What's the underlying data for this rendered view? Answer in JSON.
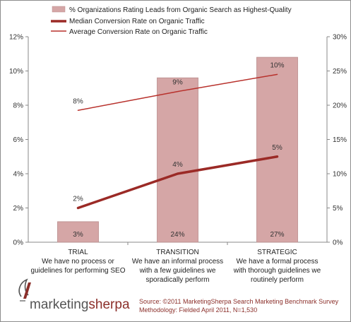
{
  "chart_data": {
    "type": "bar+line",
    "categories": [
      [
        "TRIAL",
        "We have no process or",
        "guidelines for performing SEO"
      ],
      [
        "TRANSITION",
        "We have an informal process",
        "with a few guidelines we",
        "sporadically perform"
      ],
      [
        "STRATEGIC",
        "We have a formal process",
        "with thorough guidelines we",
        "routinely perform"
      ]
    ],
    "series": [
      {
        "name": "% Organizations Rating Leads from Organic Search as Highest-Quality",
        "kind": "bar",
        "axis": "left",
        "values": [
          1.2,
          9.6,
          10.8
        ],
        "labels": [
          "3%",
          "24%",
          "27%"
        ],
        "color": "#d5a6a6",
        "border": "#b98d8d"
      },
      {
        "name": "Median Conversion Rate on Organic Traffic",
        "kind": "line",
        "axis": "left",
        "values": [
          2,
          4,
          5
        ],
        "labels": [
          "2%",
          "4%",
          "5%"
        ],
        "color": "#9b2a26",
        "thick": true
      },
      {
        "name": "Average Conversion Rate on Organic Traffic",
        "kind": "line",
        "axis": "left",
        "values": [
          7.7,
          8.8,
          9.8
        ],
        "labels": [
          "8%",
          "9%",
          "10%"
        ],
        "color": "#b8312c",
        "thick": false
      }
    ],
    "y_left": {
      "min": 0,
      "max": 12,
      "ticks": [
        "0%",
        "2%",
        "4%",
        "6%",
        "8%",
        "10%",
        "12%"
      ]
    },
    "y_right": {
      "min": 0,
      "max": 30,
      "ticks": [
        "0%",
        "5%",
        "10%",
        "15%",
        "20%",
        "25%",
        "30%"
      ]
    },
    "grid": false,
    "legend_position": "top"
  },
  "branding": {
    "logo_part1": "marketing",
    "logo_part2": "sherpa",
    "source_line1": "Source: ©2011 MarketingSherpa Search Marketing Benchmark Survey",
    "source_line2": "Methodology: Fielded April 2011, N=1,530"
  }
}
